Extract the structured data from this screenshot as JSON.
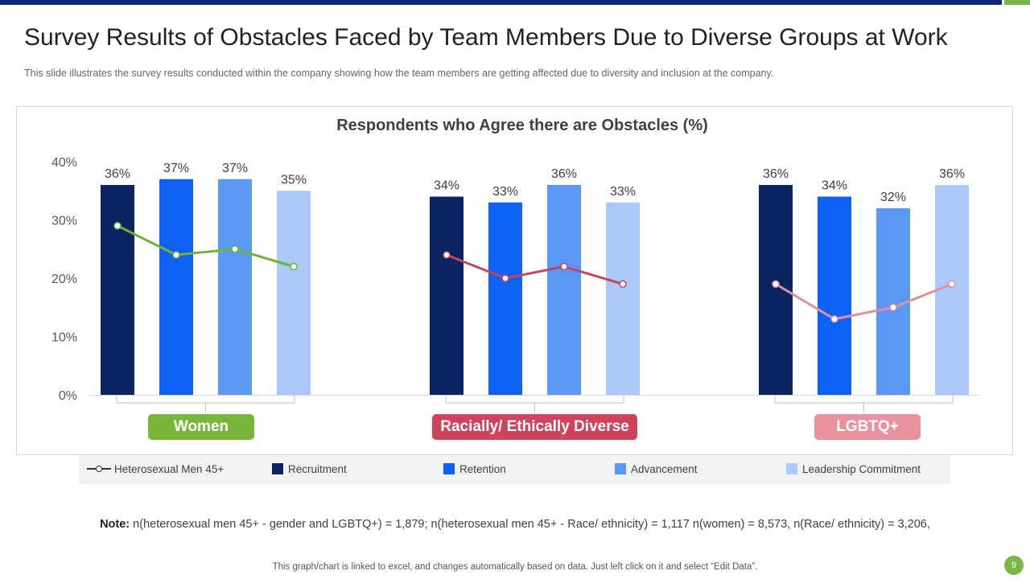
{
  "page": {
    "title": "Survey Results of Obstacles Faced by Team Members Due to Diverse Groups at Work",
    "subtitle": "This slide illustrates the survey results conducted within the company showing how the team members are getting affected due to diversity and inclusion at the company.",
    "note_label": "Note:",
    "note_text": "n(heterosexual men 45+ - gender and LGBTQ+) = 1,879; n(heterosexual men 45+ - Race/ ethnicity) = 1,117 n(women) = 8,573, n(Race/ ethnicity) = 3,206,",
    "footer": "This graph/chart is linked to excel, and changes automatically based on data. Just left click on it and select “Edit Data”.",
    "page_number": "9"
  },
  "colors": {
    "topbar": "#0b2870",
    "accent": "#7ab648"
  },
  "chart_data": {
    "type": "bar",
    "title": "Respondents who Agree there are Obstacles (%)",
    "xlabel": "",
    "ylabel": "",
    "ylim": [
      0,
      40
    ],
    "yticks": [
      0,
      10,
      20,
      30,
      40
    ],
    "ytick_labels": [
      "0%",
      "10%",
      "20%",
      "30%",
      "40%"
    ],
    "grid": false,
    "legend_position": "bottom",
    "categories": [
      "Women",
      "Racially/ Ethically Diverse",
      "LGBTQ+"
    ],
    "category_colors": [
      "#79b63a",
      "#d0435c",
      "#e8929f"
    ],
    "series": [
      {
        "name": "Recruitment",
        "color": "#0b2461",
        "values": [
          36,
          34,
          36
        ],
        "labels": [
          "36%",
          "34%",
          "36%"
        ]
      },
      {
        "name": "Retention",
        "color": "#0e61f2",
        "values": [
          37,
          33,
          34
        ],
        "labels": [
          "37%",
          "33%",
          "34%"
        ]
      },
      {
        "name": "Advancement",
        "color": "#5b98f5",
        "values": [
          37,
          36,
          32
        ],
        "labels": [
          "37%",
          "36%",
          "32%"
        ]
      },
      {
        "name": "Leadership Commitment",
        "color": "#abc9fb",
        "values": [
          35,
          33,
          36
        ],
        "labels": [
          "35%",
          "33%",
          "36%"
        ]
      }
    ],
    "line_series": {
      "name": "Heterosexual  Men 45+",
      "values": [
        [
          29,
          24,
          25,
          22
        ],
        [
          24,
          20,
          22,
          19
        ],
        [
          19,
          13,
          15,
          19
        ]
      ],
      "colors": [
        "#6eb33a",
        "#c4455f",
        "#e0909c"
      ]
    }
  }
}
